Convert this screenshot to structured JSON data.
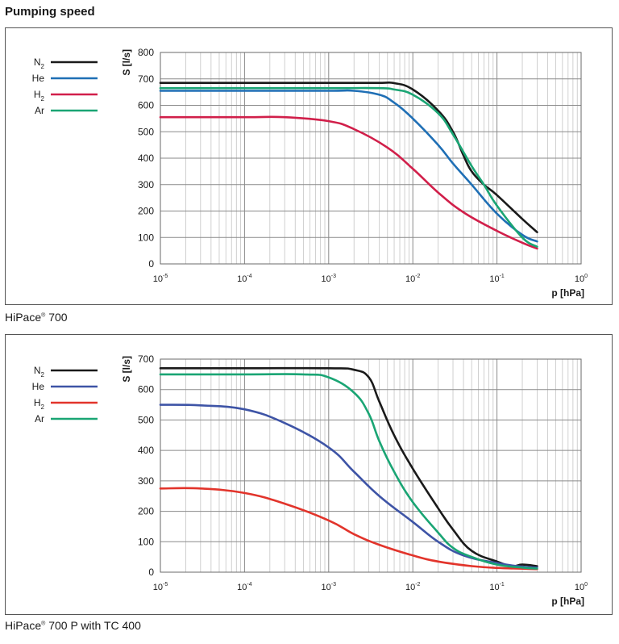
{
  "title": "Pumping speed",
  "chart_data": [
    {
      "type": "line",
      "caption": "HiPace® 700",
      "caption_name": "HiPace",
      "caption_reg": "®",
      "caption_model": "700",
      "xscale": "log",
      "xlim": [
        1e-05,
        1
      ],
      "ylim": [
        0,
        800
      ],
      "yticks": [
        0,
        100,
        200,
        300,
        400,
        500,
        600,
        700,
        800
      ],
      "xticks": [
        {
          "base": "10",
          "exp": "-5"
        },
        {
          "base": "10",
          "exp": "-4"
        },
        {
          "base": "10",
          "exp": "-3"
        },
        {
          "base": "10",
          "exp": "-2"
        },
        {
          "base": "10",
          "exp": "-1"
        },
        {
          "base": "10",
          "exp": "0"
        }
      ],
      "xlabel": "p [hPa]",
      "ylabel": "S [l/s]",
      "grid": true,
      "legend_position": "left",
      "series": [
        {
          "name": "N",
          "sub": "2",
          "color": "#1a1a1a",
          "x": [
            1e-05,
            0.0001,
            0.001,
            0.004,
            0.006,
            0.01,
            0.02,
            0.03,
            0.04,
            0.05,
            0.07,
            0.1,
            0.2,
            0.3
          ],
          "y": [
            685,
            685,
            685,
            685,
            684,
            660,
            580,
            500,
            410,
            350,
            300,
            260,
            170,
            120
          ]
        },
        {
          "name": "He",
          "sub": "",
          "color": "#1f6fb5",
          "x": [
            1e-05,
            0.0001,
            0.001,
            0.002,
            0.004,
            0.006,
            0.01,
            0.02,
            0.03,
            0.05,
            0.1,
            0.2,
            0.3
          ],
          "y": [
            655,
            655,
            655,
            655,
            640,
            610,
            550,
            450,
            380,
            300,
            190,
            110,
            85
          ]
        },
        {
          "name": "H",
          "sub": "2",
          "color": "#d11f4a",
          "x": [
            1e-05,
            0.0001,
            0.0003,
            0.001,
            0.002,
            0.005,
            0.01,
            0.02,
            0.04,
            0.1,
            0.2,
            0.3
          ],
          "y": [
            555,
            555,
            555,
            540,
            510,
            440,
            360,
            270,
            195,
            125,
            80,
            58
          ]
        },
        {
          "name": "Ar",
          "sub": "",
          "color": "#1aa574",
          "x": [
            1e-05,
            0.0001,
            0.001,
            0.004,
            0.006,
            0.01,
            0.02,
            0.03,
            0.05,
            0.07,
            0.1,
            0.2,
            0.3
          ],
          "y": [
            665,
            665,
            665,
            665,
            660,
            640,
            570,
            490,
            370,
            300,
            220,
            100,
            65
          ]
        }
      ]
    },
    {
      "type": "line",
      "caption": "HiPace® 700 P with TC 400",
      "caption_name": "HiPace",
      "caption_reg": "®",
      "caption_model": "700 P with TC 400",
      "xscale": "log",
      "xlim": [
        1e-05,
        1
      ],
      "ylim": [
        0,
        700
      ],
      "yticks": [
        0,
        100,
        200,
        300,
        400,
        500,
        600,
        700
      ],
      "xticks": [
        {
          "base": "10",
          "exp": "-5"
        },
        {
          "base": "10",
          "exp": "-4"
        },
        {
          "base": "10",
          "exp": "-3"
        },
        {
          "base": "10",
          "exp": "-2"
        },
        {
          "base": "10",
          "exp": "-1"
        },
        {
          "base": "10",
          "exp": "0"
        }
      ],
      "xlabel": "p [hPa]",
      "ylabel": "S [l/s]",
      "grid": true,
      "legend_position": "left",
      "series": [
        {
          "name": "N",
          "sub": "2",
          "color": "#1a1a1a",
          "x": [
            1e-05,
            0.0001,
            0.001,
            0.002,
            0.003,
            0.004,
            0.006,
            0.01,
            0.02,
            0.03,
            0.05,
            0.1,
            0.15,
            0.2,
            0.3
          ],
          "y": [
            670,
            670,
            670,
            665,
            640,
            560,
            450,
            340,
            210,
            140,
            70,
            35,
            20,
            25,
            20
          ]
        },
        {
          "name": "He",
          "sub": "",
          "color": "#3e54a6",
          "x": [
            1e-05,
            3e-05,
            0.0001,
            0.0003,
            0.001,
            0.002,
            0.004,
            0.01,
            0.02,
            0.04,
            0.1,
            0.2,
            0.3
          ],
          "y": [
            550,
            548,
            535,
            490,
            410,
            330,
            250,
            165,
            100,
            55,
            30,
            18,
            15
          ]
        },
        {
          "name": "H",
          "sub": "2",
          "color": "#e2342b",
          "x": [
            1e-05,
            3e-05,
            0.0001,
            0.0003,
            0.001,
            0.002,
            0.004,
            0.01,
            0.02,
            0.05,
            0.1,
            0.3
          ],
          "y": [
            275,
            275,
            260,
            225,
            170,
            125,
            90,
            55,
            35,
            20,
            14,
            10
          ]
        },
        {
          "name": "Ar",
          "sub": "",
          "color": "#1aa574",
          "x": [
            1e-05,
            0.0001,
            0.0005,
            0.001,
            0.002,
            0.003,
            0.004,
            0.006,
            0.01,
            0.02,
            0.03,
            0.05,
            0.1,
            0.2,
            0.3
          ],
          "y": [
            650,
            650,
            650,
            640,
            590,
            520,
            430,
            330,
            230,
            130,
            80,
            50,
            25,
            15,
            12
          ]
        }
      ]
    }
  ]
}
